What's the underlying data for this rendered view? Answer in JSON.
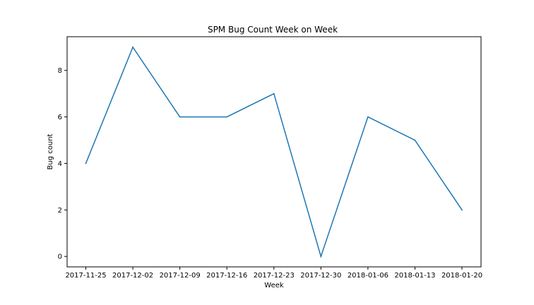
{
  "chart_data": {
    "type": "line",
    "title": "SPM Bug Count Week on Week",
    "xlabel": "Week",
    "ylabel": "Bug count",
    "categories": [
      "2017-11-25",
      "2017-12-02",
      "2017-12-09",
      "2017-12-16",
      "2017-12-23",
      "2017-12-30",
      "2018-01-06",
      "2018-01-13",
      "2018-01-20"
    ],
    "series": [
      {
        "values": [
          4,
          9,
          6,
          6,
          7,
          0,
          6,
          5,
          2
        ],
        "color": "#1f77b4"
      }
    ],
    "yticks": [
      "0",
      "2",
      "4",
      "6",
      "8"
    ],
    "ylim": [
      -0.45,
      9.45
    ],
    "grid": false,
    "legend": "none"
  }
}
